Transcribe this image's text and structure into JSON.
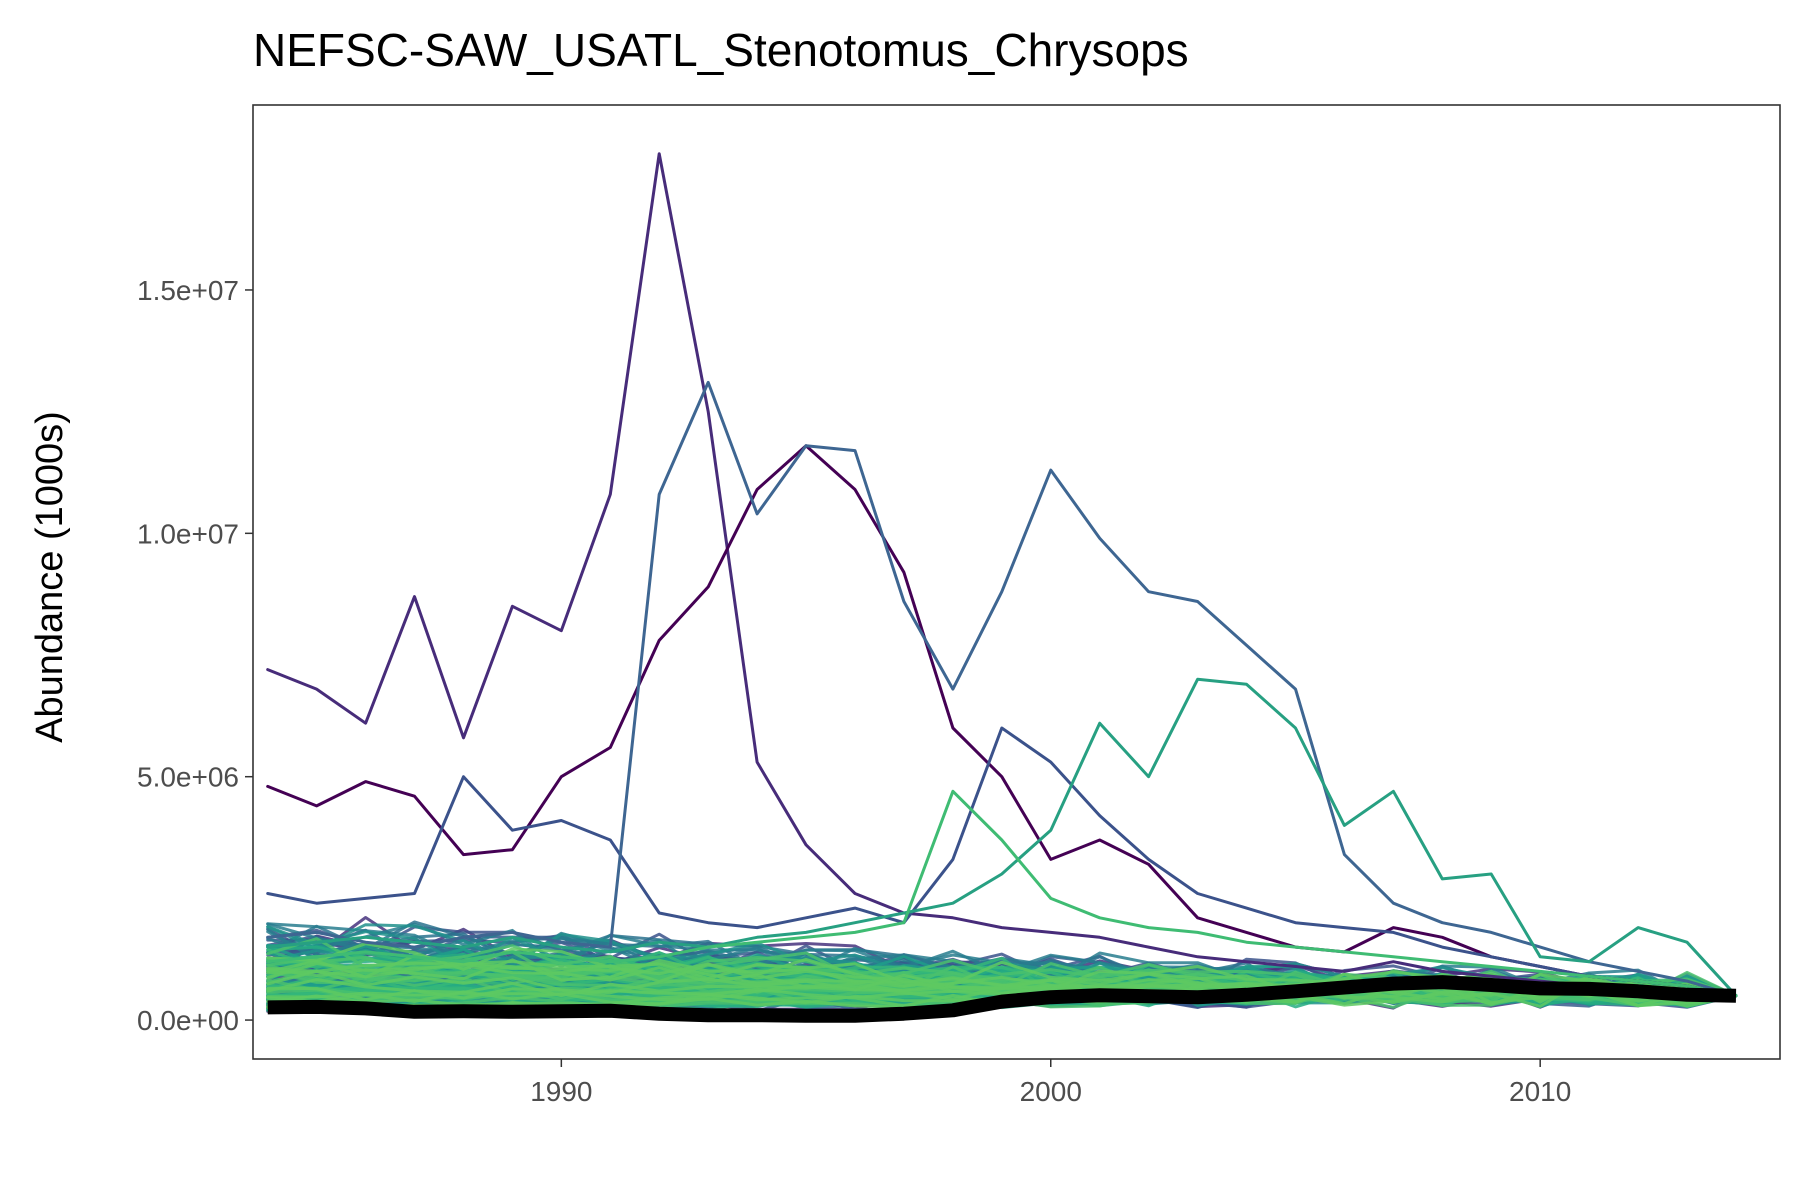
{
  "chart_data": {
    "type": "line",
    "title": "NEFSC-SAW_USATL_Stenotomus_Chrysops",
    "xlabel": "",
    "ylabel": "Abundance (1000s)",
    "xlim": [
      1983.7,
      2014.9
    ],
    "ylim": [
      -800000,
      18800000
    ],
    "x_ticks": [
      1990,
      2000,
      2010
    ],
    "x_tick_labels": [
      "1990",
      "2000",
      "2010"
    ],
    "y_ticks": [
      0,
      5000000,
      10000000,
      15000000
    ],
    "y_tick_labels": [
      "0.0e+00",
      "5.0e+06",
      "1.0e+07",
      "1.5e+07"
    ],
    "grid": false,
    "legend": "none",
    "years": [
      1984,
      1985,
      1986,
      1987,
      1988,
      1989,
      1990,
      1991,
      1992,
      1993,
      1994,
      1995,
      1996,
      1997,
      1998,
      1999,
      2000,
      2001,
      2002,
      2003,
      2004,
      2005,
      2006,
      2007,
      2008,
      2009,
      2010,
      2011,
      2012,
      2013,
      2014
    ],
    "highlighted_series": [
      {
        "color": "#472c7a",
        "values": [
          7200000,
          6800000,
          6100000,
          8700000,
          5800000,
          8500000,
          8000000,
          10800000,
          17800000,
          12500000,
          5300000,
          3600000,
          2600000,
          2200000,
          2100000,
          1900000,
          1800000,
          1700000,
          1500000,
          1300000,
          1200000,
          1100000,
          1000000,
          1200000,
          1000000,
          900000,
          800000,
          700000,
          600000,
          500000,
          500000
        ]
      },
      {
        "color": "#440154",
        "values": [
          4800000,
          4400000,
          4900000,
          4600000,
          3400000,
          3500000,
          5000000,
          5600000,
          7800000,
          8900000,
          10900000,
          11800000,
          10900000,
          9200000,
          6000000,
          5000000,
          3300000,
          3700000,
          3200000,
          2100000,
          1800000,
          1500000,
          1400000,
          1900000,
          1700000,
          1300000,
          1100000,
          900000,
          800000,
          700000,
          500000
        ]
      },
      {
        "color": "#3b528b",
        "values": [
          2600000,
          2400000,
          2500000,
          2600000,
          5000000,
          3900000,
          4100000,
          3700000,
          2200000,
          2000000,
          1900000,
          2100000,
          2300000,
          2000000,
          3300000,
          6000000,
          5300000,
          4200000,
          3300000,
          2600000,
          2300000,
          2000000,
          1900000,
          1800000,
          1500000,
          1300000,
          1100000,
          900000,
          800000,
          700000,
          500000
        ]
      },
      {
        "color": "#3e6692",
        "values": [
          1700000,
          1800000,
          1600000,
          1500000,
          1700000,
          1800000,
          1600000,
          1500000,
          10800000,
          13100000,
          10400000,
          11800000,
          11700000,
          8600000,
          6800000,
          8800000,
          11300000,
          9900000,
          8800000,
          8600000,
          7700000,
          6800000,
          3400000,
          2400000,
          2000000,
          1800000,
          1500000,
          1200000,
          1000000,
          800000,
          500000
        ]
      },
      {
        "color": "#27a082",
        "values": [
          1500000,
          1600000,
          1700000,
          1600000,
          1500000,
          1700000,
          1500000,
          1400000,
          1600000,
          1500000,
          1700000,
          1800000,
          2000000,
          2200000,
          2400000,
          3000000,
          3900000,
          6100000,
          5000000,
          7000000,
          6900000,
          6000000,
          4000000,
          4700000,
          2900000,
          3000000,
          1300000,
          1200000,
          1900000,
          1600000,
          500000
        ]
      },
      {
        "color": "#3fbc73",
        "values": [
          1200000,
          1300000,
          1400000,
          1300000,
          1200000,
          1400000,
          1300000,
          1200000,
          1300000,
          1500000,
          1600000,
          1700000,
          1800000,
          2000000,
          4700000,
          3700000,
          2500000,
          2100000,
          1900000,
          1800000,
          1600000,
          1500000,
          1400000,
          1300000,
          1200000,
          1100000,
          1000000,
          900000,
          800000,
          700000,
          500000
        ]
      }
    ],
    "mean_series": {
      "name": "",
      "color": "#000000",
      "values": [
        260000,
        270000,
        240000,
        170000,
        180000,
        170000,
        180000,
        190000,
        130000,
        100000,
        100000,
        90000,
        90000,
        130000,
        200000,
        380000,
        470000,
        510000,
        490000,
        470000,
        520000,
        590000,
        670000,
        750000,
        780000,
        720000,
        650000,
        640000,
        590000,
        520000,
        500000
      ]
    }
  }
}
